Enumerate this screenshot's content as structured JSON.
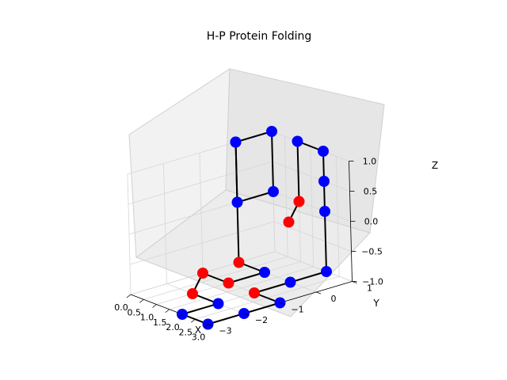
{
  "chart_data": {
    "type": "scatter",
    "subtype": "3d-line-scatter",
    "title": "H-P Protein Folding",
    "xlabel": "X",
    "ylabel": "Y",
    "zlabel": "Z",
    "xlim": [
      0,
      3
    ],
    "ylim": [
      -3,
      1
    ],
    "zlim": [
      -1,
      1
    ],
    "x_ticks": [
      {
        "value": 0.0,
        "label": "0.0"
      },
      {
        "value": 0.5,
        "label": "0.5"
      },
      {
        "value": 1.0,
        "label": "1.0"
      },
      {
        "value": 1.5,
        "label": "1.5"
      },
      {
        "value": 2.0,
        "label": "2.0"
      },
      {
        "value": 2.5,
        "label": "2.5"
      },
      {
        "value": 3.0,
        "label": "3.0"
      }
    ],
    "y_ticks": [
      {
        "value": -3,
        "label": "−3"
      },
      {
        "value": -2,
        "label": "−2"
      },
      {
        "value": -1,
        "label": "−1"
      },
      {
        "value": 0,
        "label": "0"
      },
      {
        "value": 1,
        "label": "1"
      }
    ],
    "z_ticks": [
      {
        "value": -1.0,
        "label": "−1.0"
      },
      {
        "value": -0.5,
        "label": "−0.5"
      },
      {
        "value": 0.0,
        "label": "0.0"
      },
      {
        "value": 0.5,
        "label": "0.5"
      },
      {
        "value": 1.0,
        "label": "1.0"
      }
    ],
    "grid": true,
    "colors": {
      "H": "#ff0000",
      "P": "#0000ff",
      "chain": "#000000"
    },
    "points": [
      {
        "x": 0,
        "y": 0,
        "z": 1,
        "type": "P"
      },
      {
        "x": 0,
        "y": 0,
        "z": 0,
        "type": "P"
      },
      {
        "x": 0,
        "y": 1,
        "z": 0,
        "type": "P"
      },
      {
        "x": 0,
        "y": 1,
        "z": 1,
        "type": "P"
      },
      {
        "x": 0,
        "y": 0,
        "z": 1,
        "type": "P"
      },
      {
        "x": 0,
        "y": 0,
        "z": -1,
        "type": "H"
      },
      {
        "x": 1,
        "y": 0,
        "z": -1,
        "type": "P"
      },
      {
        "x": 1,
        "y": -1,
        "z": -1,
        "type": "H"
      },
      {
        "x": 0,
        "y": -1,
        "z": -1,
        "type": "H"
      },
      {
        "x": 1,
        "y": -2,
        "z": -1,
        "type": "H"
      },
      {
        "x": 2,
        "y": -2,
        "z": -1,
        "type": "P"
      },
      {
        "x": 2,
        "y": -3,
        "z": -1,
        "type": "P"
      },
      {
        "x": 3,
        "y": -3,
        "z": -1,
        "type": "P"
      },
      {
        "x": 3,
        "y": -2,
        "z": -1,
        "type": "P"
      },
      {
        "x": 3,
        "y": -1,
        "z": -1,
        "type": "P"
      },
      {
        "x": 2,
        "y": -1,
        "z": -1,
        "type": "H"
      },
      {
        "x": 2,
        "y": 0,
        "z": -1,
        "type": "P"
      },
      {
        "x": 2,
        "y": 1,
        "z": -1,
        "type": "P"
      },
      {
        "x": 2,
        "y": 1,
        "z": 0,
        "type": "P"
      },
      {
        "x": 2,
        "y": 1,
        "z": 0.5,
        "type": "P"
      },
      {
        "x": 2,
        "y": 1,
        "z": 1,
        "type": "P"
      },
      {
        "x": 1,
        "y": 1,
        "z": 1,
        "type": "P"
      },
      {
        "x": 1,
        "y": 1,
        "z": 0,
        "type": "H"
      },
      {
        "x": 2,
        "y": 0,
        "z": 0,
        "type": "H"
      }
    ]
  }
}
